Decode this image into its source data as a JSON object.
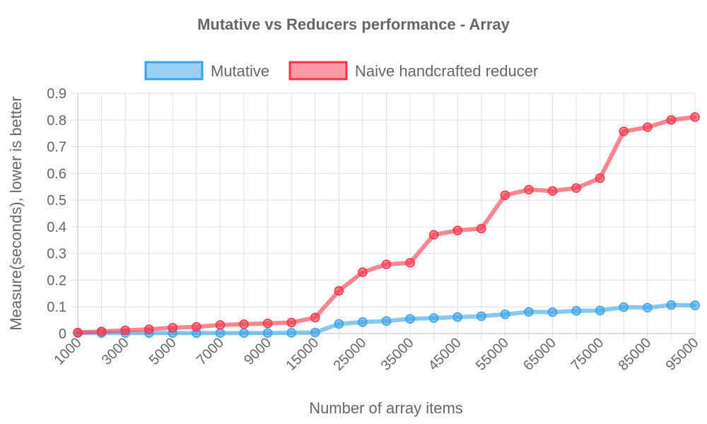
{
  "chart_data": {
    "type": "line",
    "title": "Mutative vs Reducers performance - Array",
    "xlabel": "Number of array items",
    "ylabel": "Measure(seconds), lower is better",
    "categories": [
      "1000",
      "2000",
      "3000",
      "4000",
      "5000",
      "6000",
      "7000",
      "8000",
      "9000",
      "10000",
      "15000",
      "20000",
      "25000",
      "30000",
      "35000",
      "40000",
      "45000",
      "50000",
      "55000",
      "60000",
      "65000",
      "70000",
      "75000",
      "80000",
      "85000",
      "90000",
      "95000"
    ],
    "x_tick_labels": [
      "1000",
      "3000",
      "5000",
      "7000",
      "9000",
      "15000",
      "25000",
      "35000",
      "45000",
      "55000",
      "65000",
      "75000",
      "85000",
      "95000"
    ],
    "ylim": [
      0,
      0.9
    ],
    "y_ticks": [
      "0",
      "0.1",
      "0.2",
      "0.3",
      "0.4",
      "0.5",
      "0.6",
      "0.7",
      "0.8",
      "0.9"
    ],
    "grid": true,
    "legend_position": "top",
    "series": [
      {
        "name": "Mutative",
        "color": "#36a2eb",
        "values": [
          0.002,
          0.002,
          0.002,
          0.002,
          0.002,
          0.002,
          0.002,
          0.002,
          0.002,
          0.003,
          0.004,
          0.036,
          0.043,
          0.047,
          0.055,
          0.058,
          0.062,
          0.065,
          0.072,
          0.081,
          0.08,
          0.085,
          0.086,
          0.099,
          0.097,
          0.107,
          0.106
        ]
      },
      {
        "name": "Naive handcrafted reducer",
        "color": "#ff3347",
        "values": [
          0.004,
          0.008,
          0.012,
          0.016,
          0.022,
          0.025,
          0.032,
          0.035,
          0.038,
          0.041,
          0.06,
          0.16,
          0.23,
          0.259,
          0.265,
          0.37,
          0.386,
          0.393,
          0.518,
          0.539,
          0.534,
          0.545,
          0.582,
          0.757,
          0.773,
          0.8,
          0.811
        ]
      }
    ]
  }
}
